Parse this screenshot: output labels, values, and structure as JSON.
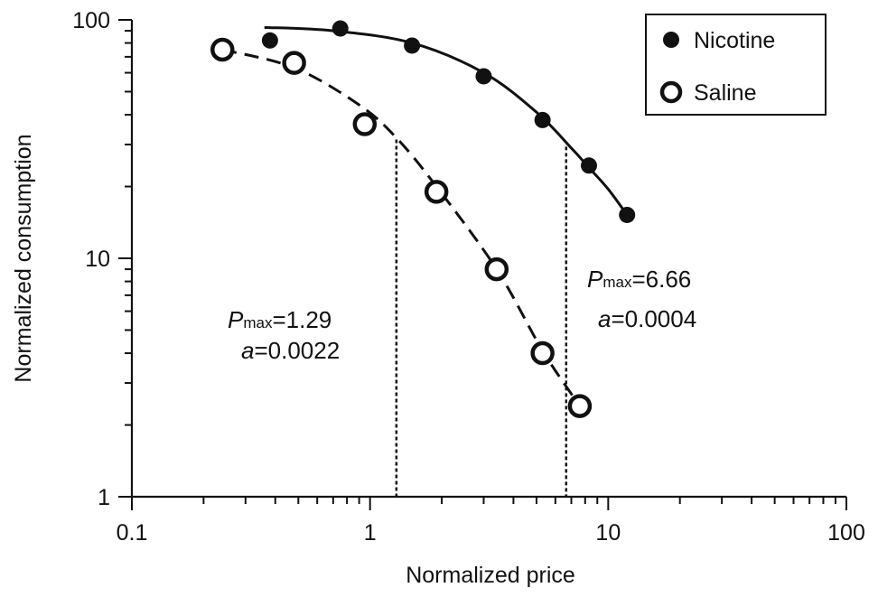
{
  "chart_data": {
    "type": "scatter",
    "xlabel": "Normalized price",
    "ylabel": "Normalized consumption",
    "x_scale": "log",
    "y_scale": "log",
    "xlim": [
      0.1,
      100
    ],
    "ylim": [
      1,
      100
    ],
    "x_ticks": [
      0.1,
      1,
      10,
      100
    ],
    "x_tick_labels": [
      "0.1",
      "1",
      "10",
      "100"
    ],
    "y_ticks": [
      1,
      10,
      100
    ],
    "y_tick_labels": [
      "1",
      "10",
      "100"
    ],
    "legend_position": "top-right",
    "series": [
      {
        "name": "Nicotine",
        "marker": "filled-circle",
        "line_style": "solid",
        "points": [
          {
            "x": 0.38,
            "y": 82
          },
          {
            "x": 0.75,
            "y": 92
          },
          {
            "x": 1.5,
            "y": 78
          },
          {
            "x": 3.0,
            "y": 58
          },
          {
            "x": 5.3,
            "y": 38
          },
          {
            "x": 8.3,
            "y": 24.5
          },
          {
            "x": 12.0,
            "y": 15.2
          }
        ],
        "fit": [
          {
            "x": 0.36,
            "y": 93
          },
          {
            "x": 0.7,
            "y": 90
          },
          {
            "x": 1.5,
            "y": 80
          },
          {
            "x": 3.0,
            "y": 60
          },
          {
            "x": 5.0,
            "y": 41
          },
          {
            "x": 7.0,
            "y": 29
          },
          {
            "x": 8.3,
            "y": 24
          },
          {
            "x": 10.0,
            "y": 19.5
          },
          {
            "x": 12.0,
            "y": 15.2
          }
        ],
        "pmax": 6.66,
        "pmax_y": 29.4,
        "pmax_label": "P",
        "pmax_sub": "max",
        "pmax_text": "=6.66",
        "alpha_label": "a",
        "alpha_text": "=0.0004"
      },
      {
        "name": "Saline",
        "marker": "open-circle",
        "line_style": "dashed",
        "points": [
          {
            "x": 0.24,
            "y": 75
          },
          {
            "x": 0.48,
            "y": 66
          },
          {
            "x": 0.95,
            "y": 36.5
          },
          {
            "x": 1.9,
            "y": 19
          },
          {
            "x": 3.4,
            "y": 9
          },
          {
            "x": 5.3,
            "y": 4
          },
          {
            "x": 7.6,
            "y": 2.4
          }
        ],
        "fit": [
          {
            "x": 0.24,
            "y": 75
          },
          {
            "x": 0.48,
            "y": 63
          },
          {
            "x": 0.9,
            "y": 44
          },
          {
            "x": 1.29,
            "y": 32
          },
          {
            "x": 1.9,
            "y": 20
          },
          {
            "x": 3.4,
            "y": 9
          },
          {
            "x": 5.3,
            "y": 4.1
          },
          {
            "x": 7.6,
            "y": 2.4
          }
        ],
        "pmax": 1.29,
        "pmax_y": 31.5,
        "pmax_label": "P",
        "pmax_sub": "max",
        "pmax_text": "=1.29",
        "alpha_label": "a",
        "alpha_text": "=0.0022"
      }
    ]
  }
}
